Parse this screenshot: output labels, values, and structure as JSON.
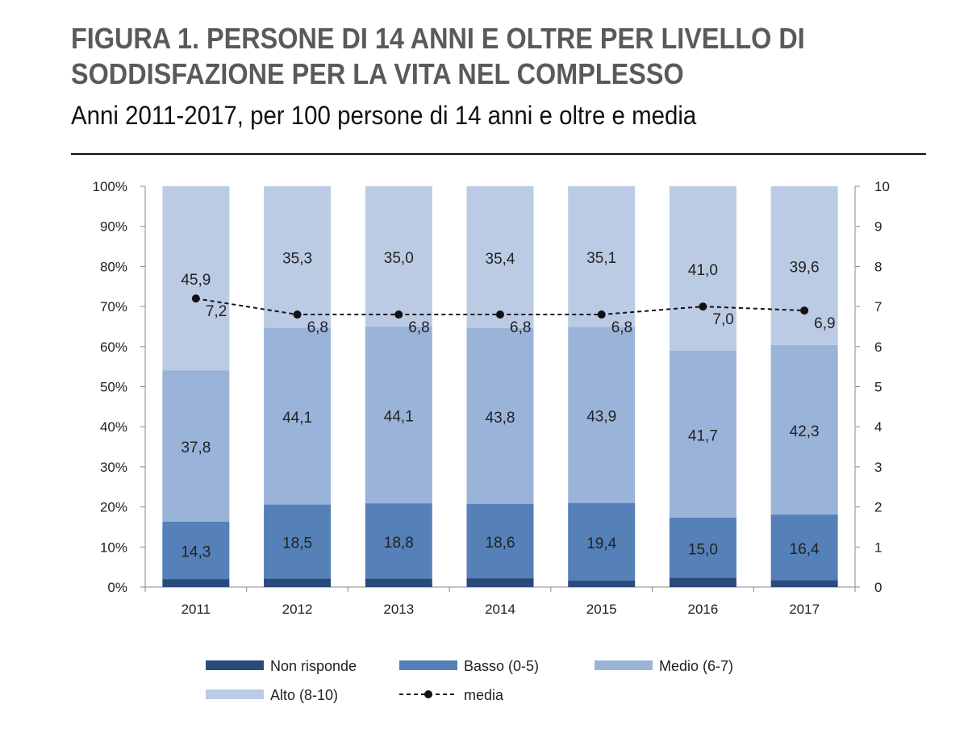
{
  "chart_data": {
    "type": "bar",
    "stacked": true,
    "title": "FIGURA 1. PERSONE DI 14 ANNI E OLTRE PER LIVELLO DI SODDISFAZIONE PER LA VITA NEL COMPLESSO",
    "subtitle": "Anni 2011-2017, per 100 persone di 14 anni e oltre e media",
    "categories": [
      "2011",
      "2012",
      "2013",
      "2014",
      "2015",
      "2016",
      "2017"
    ],
    "ylim": [
      0,
      100
    ],
    "y_ticks": [
      "0%",
      "10%",
      "20%",
      "30%",
      "40%",
      "50%",
      "60%",
      "70%",
      "80%",
      "90%",
      "100%"
    ],
    "y2lim": [
      0,
      10
    ],
    "y2_ticks": [
      "0",
      "1",
      "2",
      "3",
      "4",
      "5",
      "6",
      "7",
      "8",
      "9",
      "10"
    ],
    "series": [
      {
        "name": "Non risponde",
        "color": "#2a4a7c",
        "values": [
          2.0,
          2.1,
          2.1,
          2.2,
          1.6,
          2.3,
          1.7
        ],
        "labels": false
      },
      {
        "name": "Basso (0-5)",
        "color": "#5580b8",
        "values": [
          14.3,
          18.5,
          18.8,
          18.6,
          19.4,
          15.0,
          16.4
        ],
        "labels": [
          "14,3",
          "18,5",
          "18,8",
          "18,6",
          "19,4",
          "15,0",
          "16,4"
        ]
      },
      {
        "name": "Medio (6-7)",
        "color": "#9ab3d8",
        "values": [
          37.8,
          44.1,
          44.1,
          43.8,
          43.9,
          41.7,
          42.3
        ],
        "labels": [
          "37,8",
          "44,1",
          "44,1",
          "43,8",
          "43,9",
          "41,7",
          "42,3"
        ]
      },
      {
        "name": "Alto (8-10)",
        "color": "#bccbe4",
        "values": [
          45.9,
          35.3,
          35.0,
          35.4,
          35.1,
          41.0,
          39.6
        ],
        "labels": [
          "45,9",
          "35,3",
          "35,0",
          "35,4",
          "35,1",
          "41,0",
          "39,6"
        ]
      }
    ],
    "line": {
      "name": "media",
      "axis": "right",
      "values": [
        7.2,
        6.8,
        6.8,
        6.8,
        6.8,
        7.0,
        6.9
      ],
      "labels": [
        "7,2",
        "6,8",
        "6,8",
        "6,8",
        "6,8",
        "7,0",
        "6,9"
      ]
    },
    "legend_position": "bottom"
  }
}
